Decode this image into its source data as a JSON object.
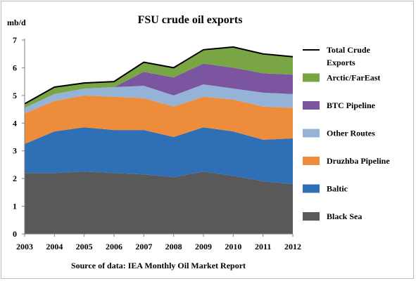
{
  "chart_data": {
    "type": "area",
    "title": "FSU crude oil exports",
    "y_unit": "mb/d",
    "source": "Source of data: IEA Monthly Oil Market Report",
    "x": [
      "2003",
      "2004",
      "2005",
      "2006",
      "2007",
      "2008",
      "2009",
      "2010",
      "2011",
      "2012"
    ],
    "ylim": [
      0,
      7
    ],
    "yticks": [
      "0",
      "1",
      "2",
      "3",
      "4",
      "5",
      "6",
      "7"
    ],
    "stacked": true,
    "series": [
      {
        "name": "Black Sea",
        "color": "#595959",
        "values": [
          2.2,
          2.2,
          2.25,
          2.2,
          2.15,
          2.05,
          2.25,
          2.1,
          1.9,
          1.8
        ]
      },
      {
        "name": "Baltic",
        "color": "#2f6fb5",
        "values": [
          1.05,
          1.5,
          1.6,
          1.55,
          1.6,
          1.45,
          1.6,
          1.6,
          1.5,
          1.65
        ]
      },
      {
        "name": "Druzhba Pipeline",
        "color": "#ed8d3b",
        "values": [
          1.1,
          1.1,
          1.15,
          1.2,
          1.15,
          1.1,
          1.1,
          1.15,
          1.2,
          1.1
        ]
      },
      {
        "name": "Other Routes",
        "color": "#95b3d7",
        "values": [
          0.2,
          0.25,
          0.25,
          0.35,
          0.45,
          0.4,
          0.45,
          0.4,
          0.5,
          0.5
        ]
      },
      {
        "name": "BTC Pipeline",
        "color": "#7b559f",
        "values": [
          0.0,
          0.0,
          0.0,
          0.0,
          0.5,
          0.65,
          0.75,
          0.75,
          0.7,
          0.7
        ]
      },
      {
        "name": "Arctic/FarEast",
        "color": "#79a544",
        "values": [
          0.15,
          0.25,
          0.2,
          0.2,
          0.35,
          0.35,
          0.5,
          0.75,
          0.7,
          0.65
        ]
      }
    ],
    "total_line": {
      "name": "Total Crude Exports",
      "color": "#000000",
      "values": [
        4.7,
        5.3,
        5.45,
        5.5,
        6.2,
        6.0,
        6.65,
        6.75,
        6.5,
        6.4
      ]
    },
    "legend": [
      {
        "label": "Total Crude Exports",
        "kind": "line",
        "color": "#000000"
      },
      {
        "label": "Arctic/FarEast",
        "kind": "box",
        "color": "#79a544"
      },
      {
        "label": "BTC Pipeline",
        "kind": "box",
        "color": "#7b559f"
      },
      {
        "label": "Other Routes",
        "kind": "box",
        "color": "#95b3d7"
      },
      {
        "label": "Druzhba Pipeline",
        "kind": "box",
        "color": "#ed8d3b"
      },
      {
        "label": "Baltic",
        "kind": "box",
        "color": "#2f6fb5"
      },
      {
        "label": "Black Sea",
        "kind": "box",
        "color": "#595959"
      }
    ],
    "legend_position": "right",
    "grid": false
  }
}
